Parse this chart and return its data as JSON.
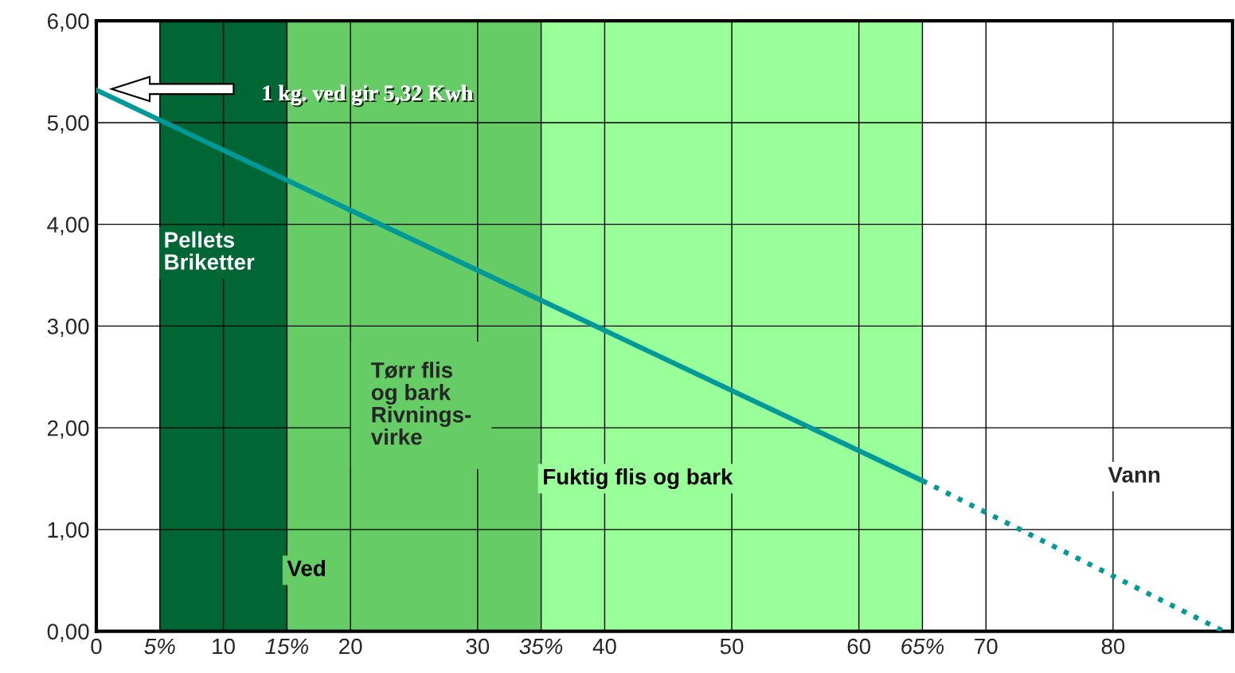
{
  "chart_data": {
    "type": "line",
    "series": [
      {
        "color": "#009999",
        "line_style": "solid",
        "x": [
          0,
          65
        ],
        "values": [
          5.32,
          1.48
        ]
      },
      {
        "color": "#009999",
        "line_style": "dotted",
        "x": [
          65,
          88.7
        ],
        "values": [
          1.48,
          0
        ]
      }
    ],
    "xlim": [
      0,
      89.4
    ],
    "ylim": [
      0,
      6
    ],
    "xticks": [
      0,
      {
        "value": 5,
        "label": "5%"
      },
      10,
      {
        "value": 15,
        "label": "15%"
      },
      20,
      30,
      {
        "value": 35,
        "label": "35%"
      },
      40,
      50,
      60,
      {
        "value": 65,
        "label": "65%"
      },
      70,
      80
    ],
    "yticks": [
      {
        "value": 0,
        "label": "0,00"
      },
      {
        "value": 1,
        "label": "1,00"
      },
      {
        "value": 2,
        "label": "2,00"
      },
      {
        "value": 3,
        "label": "3,00"
      },
      {
        "value": 4,
        "label": "4,00"
      },
      {
        "value": 5,
        "label": "5,00"
      },
      {
        "value": 6,
        "label": "6,00"
      }
    ],
    "grid": true,
    "bands": [
      {
        "axis": "x",
        "from": 5,
        "to": 15,
        "label": "Pellets\nBriketter",
        "color": "#006633"
      },
      {
        "axis": "x",
        "from": 15,
        "to": 35,
        "label": "Ved",
        "color": "#66cc66"
      },
      {
        "axis": "x",
        "from": 35,
        "to": 65,
        "label": "Fuktig flis og bark",
        "color": "#99ff99"
      }
    ],
    "annotations": [
      "1 kg. ved gir 5,32 Kwh",
      "Tørr flis\nog bark\nRivnings-\nvirke",
      "Vann"
    ]
  }
}
